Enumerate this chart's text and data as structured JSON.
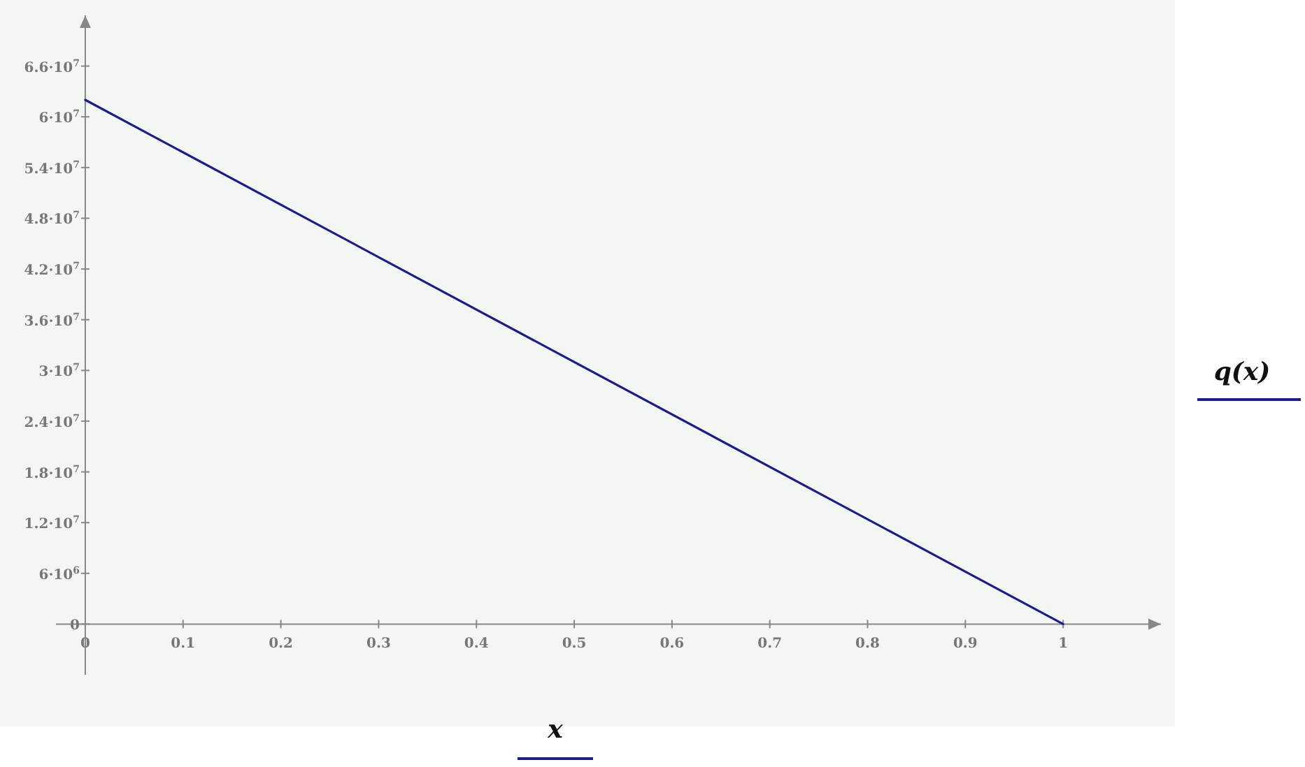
{
  "chart_data": {
    "type": "line",
    "xlabel": "x",
    "x": [
      0,
      1
    ],
    "series": [
      {
        "name": "q(x)",
        "color": "#1c1c8a",
        "values": [
          62000000,
          0
        ]
      }
    ],
    "xlim": [
      -0.03,
      1.1
    ],
    "ylim": [
      -6000000,
      72000000
    ],
    "xticks": [
      0,
      0.1,
      0.2,
      0.3,
      0.4,
      0.5,
      0.6,
      0.7,
      0.8,
      0.9,
      1
    ],
    "yticks": [
      0,
      {
        "value": 6000000,
        "label": "6·10$^{6}$"
      },
      {
        "value": 12000000,
        "label": "1.2·10$^{7}$"
      },
      {
        "value": 18000000,
        "label": "1.8·10$^{7}$"
      },
      {
        "value": 24000000,
        "label": "2.4·10$^{7}$"
      },
      {
        "value": 30000000,
        "label": "3·10$^{7}$"
      },
      {
        "value": 36000000,
        "label": "3.6·10$^{7}$"
      },
      {
        "value": 42000000,
        "label": "4.2·10$^{7}$"
      },
      {
        "value": 48000000,
        "label": "4.8·10$^{7}$"
      },
      {
        "value": 54000000,
        "label": "5.4·10$^{7}$"
      },
      {
        "value": 60000000,
        "label": "6·10$^{7}$"
      },
      {
        "value": 66000000,
        "label": "6.6·10$^{7}$"
      }
    ],
    "grid": false,
    "legend": "right",
    "marker": "none",
    "line_style": "solid"
  }
}
